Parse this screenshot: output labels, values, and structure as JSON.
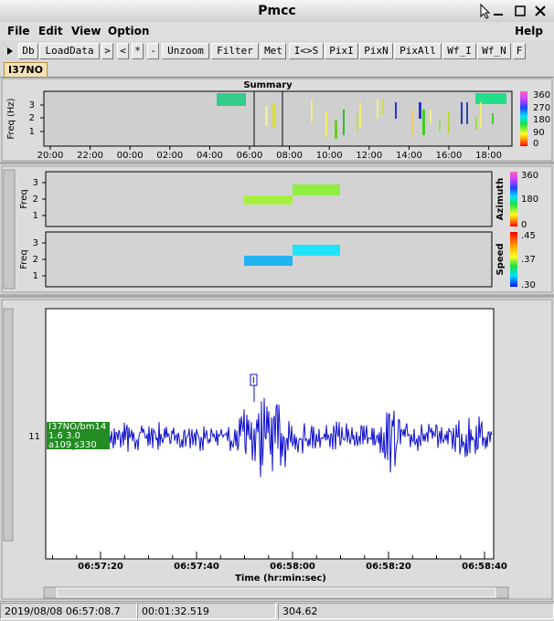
{
  "window": {
    "title": "Pmcc"
  },
  "menu": [
    "File",
    "Edit",
    "View",
    "Option",
    "Help"
  ],
  "toolbar": [
    "Db",
    "LoadData",
    ">",
    "<",
    "*",
    "-",
    "Unzoom",
    "Filter",
    "Met",
    "I<>S",
    "PixI",
    "PixN",
    "PixAll",
    "Wf_I",
    "Wf_N",
    "F"
  ],
  "tab": "I37NO",
  "summary": {
    "title": "Summary",
    "y_label": "Freq (Hz)",
    "y_ticks": [
      "3",
      "2",
      "1"
    ],
    "x_ticks": [
      "20:00",
      "22:00",
      "00:00",
      "02:00",
      "04:00",
      "06:00",
      "08:00",
      "10:00",
      "12:00",
      "14:00",
      "16:00",
      "18:00"
    ],
    "colorbar_ticks": [
      "360",
      "270",
      "180",
      "90",
      "0"
    ]
  },
  "detail": {
    "panels": [
      {
        "y_label": "Freq",
        "y_ticks": [
          "3",
          "2",
          "1"
        ],
        "colorbar_label": "Azimuth",
        "colorbar_ticks": [
          "360",
          "180",
          "0"
        ]
      },
      {
        "y_label": "Freq",
        "y_ticks": [
          "3",
          "2",
          "1"
        ],
        "colorbar_label": "Speed",
        "colorbar_ticks": [
          ".45",
          ".37",
          ".30"
        ]
      }
    ]
  },
  "waveform": {
    "trace_index": "11",
    "trace_label": [
      "I37NO/bm14",
      "1.6 3.0",
      "a109 s330"
    ],
    "pick_marker": "I",
    "x_ticks": [
      "06:57:20",
      "06:57:40",
      "06:58:00",
      "06:58:20",
      "06:58:40"
    ],
    "x_label": "Time (hr:min:sec)"
  },
  "status": [
    "2019/08/08 06:57:08.7",
    "00:01:32.519",
    "304.62"
  ]
}
